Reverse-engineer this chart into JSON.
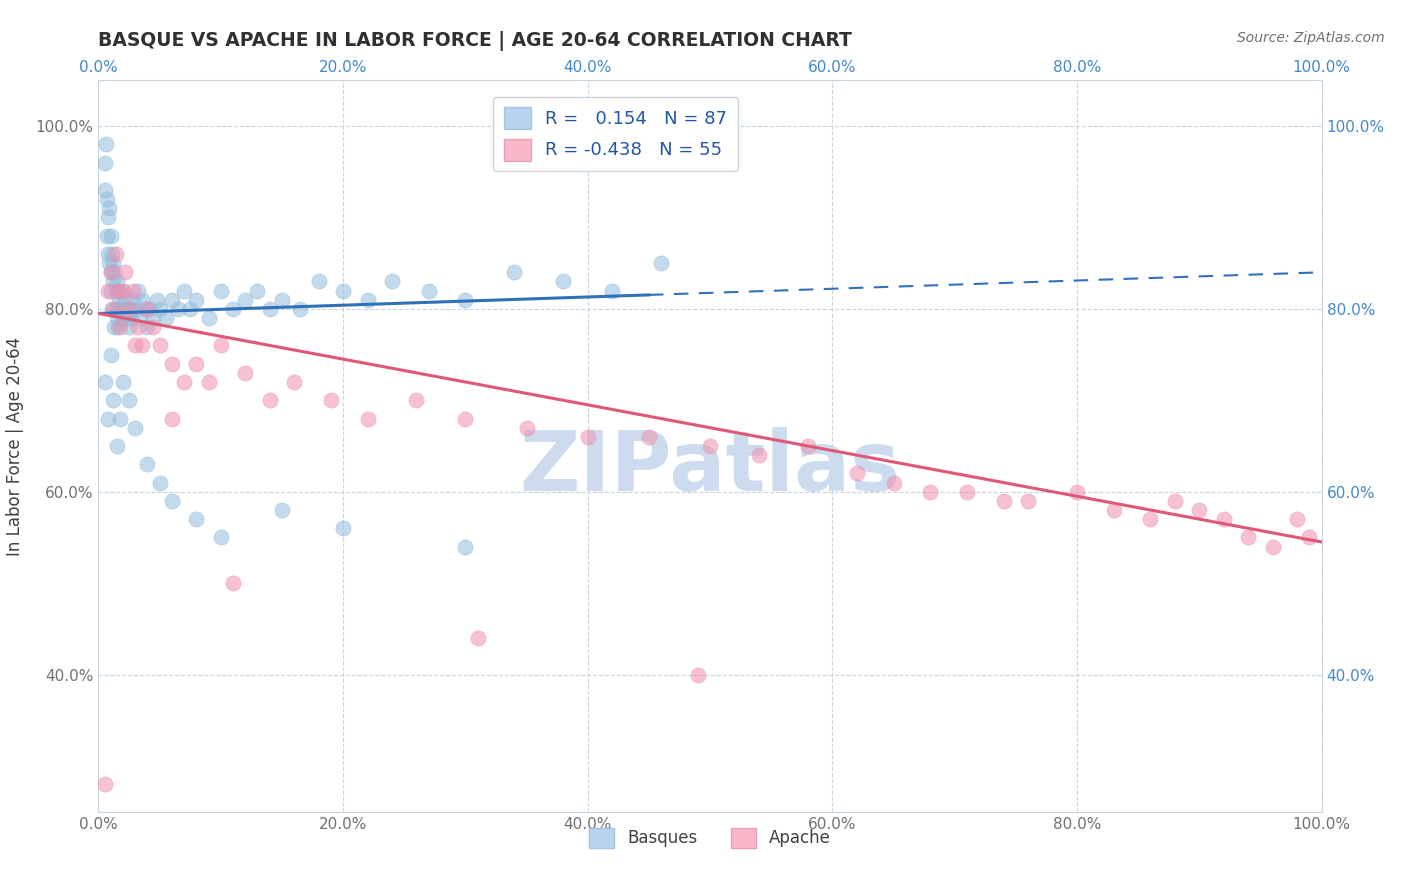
{
  "title": "BASQUE VS APACHE IN LABOR FORCE | AGE 20-64 CORRELATION CHART",
  "source_text": "Source: ZipAtlas.com",
  "ylabel": "In Labor Force | Age 20-64",
  "xlim": [
    0.0,
    1.0
  ],
  "ylim": [
    0.25,
    1.05
  ],
  "x_ticks": [
    0.0,
    0.2,
    0.4,
    0.6,
    0.8,
    1.0
  ],
  "y_ticks": [
    0.4,
    0.6,
    0.8,
    1.0
  ],
  "x_tick_labels": [
    "0.0%",
    "20.0%",
    "40.0%",
    "60.0%",
    "80.0%",
    "100.0%"
  ],
  "y_tick_labels_left": [
    "40.0%",
    "60.0%",
    "80.0%",
    "100.0%"
  ],
  "y_tick_labels_right": [
    "40.0%",
    "60.0%",
    "80.0%",
    "100.0%"
  ],
  "legend_entries": [
    {
      "label": "Basques",
      "color": "#b8d4ee",
      "R": "0.154",
      "N": "87"
    },
    {
      "label": "Apache",
      "color": "#f8b8c8",
      "R": "-0.438",
      "N": "55"
    }
  ],
  "watermark": "ZIPatlas",
  "watermark_color": "#ccdcee",
  "background_color": "#ffffff",
  "grid_color": "#c8d4de",
  "title_color": "#303030",
  "blue_scatter_color": "#90bcdc",
  "blue_scatter_edge": "#90bcdc",
  "pink_scatter_color": "#f090b0",
  "pink_scatter_edge": "#f090b0",
  "blue_line_color": "#3070b8",
  "pink_line_color": "#e05878",
  "basques_x": [
    0.005,
    0.005,
    0.006,
    0.007,
    0.007,
    0.008,
    0.008,
    0.009,
    0.009,
    0.01,
    0.01,
    0.01,
    0.011,
    0.011,
    0.012,
    0.012,
    0.013,
    0.013,
    0.014,
    0.014,
    0.015,
    0.015,
    0.016,
    0.016,
    0.017,
    0.018,
    0.019,
    0.02,
    0.021,
    0.022,
    0.023,
    0.024,
    0.025,
    0.026,
    0.027,
    0.028,
    0.03,
    0.032,
    0.034,
    0.036,
    0.038,
    0.04,
    0.042,
    0.045,
    0.048,
    0.05,
    0.055,
    0.06,
    0.065,
    0.07,
    0.075,
    0.08,
    0.09,
    0.1,
    0.11,
    0.12,
    0.13,
    0.14,
    0.15,
    0.165,
    0.18,
    0.2,
    0.22,
    0.24,
    0.27,
    0.3,
    0.34,
    0.38,
    0.42,
    0.46,
    0.005,
    0.008,
    0.01,
    0.012,
    0.015,
    0.018,
    0.02,
    0.025,
    0.03,
    0.04,
    0.05,
    0.06,
    0.08,
    0.1,
    0.15,
    0.2,
    0.3
  ],
  "basques_y": [
    0.96,
    0.93,
    0.98,
    0.92,
    0.88,
    0.9,
    0.86,
    0.91,
    0.85,
    0.88,
    0.84,
    0.82,
    0.86,
    0.8,
    0.85,
    0.83,
    0.84,
    0.78,
    0.82,
    0.8,
    0.83,
    0.79,
    0.82,
    0.78,
    0.81,
    0.8,
    0.79,
    0.82,
    0.8,
    0.81,
    0.79,
    0.8,
    0.78,
    0.8,
    0.79,
    0.81,
    0.8,
    0.82,
    0.79,
    0.81,
    0.8,
    0.78,
    0.8,
    0.79,
    0.81,
    0.8,
    0.79,
    0.81,
    0.8,
    0.82,
    0.8,
    0.81,
    0.79,
    0.82,
    0.8,
    0.81,
    0.82,
    0.8,
    0.81,
    0.8,
    0.83,
    0.82,
    0.81,
    0.83,
    0.82,
    0.81,
    0.84,
    0.83,
    0.82,
    0.85,
    0.72,
    0.68,
    0.75,
    0.7,
    0.65,
    0.68,
    0.72,
    0.7,
    0.67,
    0.63,
    0.61,
    0.59,
    0.57,
    0.55,
    0.58,
    0.56,
    0.54
  ],
  "apache_x": [
    0.005,
    0.008,
    0.01,
    0.012,
    0.014,
    0.016,
    0.018,
    0.02,
    0.022,
    0.025,
    0.028,
    0.032,
    0.036,
    0.04,
    0.045,
    0.05,
    0.06,
    0.07,
    0.08,
    0.09,
    0.1,
    0.12,
    0.14,
    0.16,
    0.19,
    0.22,
    0.26,
    0.3,
    0.35,
    0.4,
    0.45,
    0.5,
    0.54,
    0.58,
    0.62,
    0.65,
    0.68,
    0.71,
    0.74,
    0.76,
    0.8,
    0.83,
    0.86,
    0.88,
    0.9,
    0.92,
    0.94,
    0.96,
    0.98,
    0.99,
    0.03,
    0.06,
    0.11,
    0.31,
    0.49
  ],
  "apache_y": [
    0.28,
    0.82,
    0.84,
    0.8,
    0.86,
    0.82,
    0.78,
    0.82,
    0.84,
    0.8,
    0.82,
    0.78,
    0.76,
    0.8,
    0.78,
    0.76,
    0.74,
    0.72,
    0.74,
    0.72,
    0.76,
    0.73,
    0.7,
    0.72,
    0.7,
    0.68,
    0.7,
    0.68,
    0.67,
    0.66,
    0.66,
    0.65,
    0.64,
    0.65,
    0.62,
    0.61,
    0.6,
    0.6,
    0.59,
    0.59,
    0.6,
    0.58,
    0.57,
    0.59,
    0.58,
    0.57,
    0.55,
    0.54,
    0.57,
    0.55,
    0.76,
    0.68,
    0.5,
    0.44,
    0.4
  ],
  "blue_line_x0": 0.0,
  "blue_line_x1": 1.0,
  "blue_line_y0": 0.795,
  "blue_line_y1": 0.84,
  "pink_line_x0": 0.0,
  "pink_line_x1": 1.0,
  "pink_line_y0": 0.795,
  "pink_line_y1": 0.545
}
